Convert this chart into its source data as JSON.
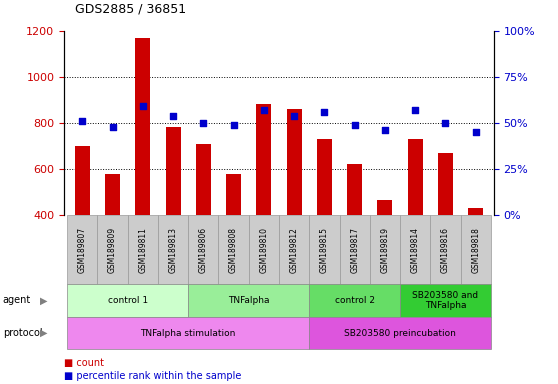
{
  "title": "GDS2885 / 36851",
  "samples": [
    "GSM189807",
    "GSM189809",
    "GSM189811",
    "GSM189813",
    "GSM189806",
    "GSM189808",
    "GSM189810",
    "GSM189812",
    "GSM189815",
    "GSM189817",
    "GSM189819",
    "GSM189814",
    "GSM189816",
    "GSM189818"
  ],
  "counts": [
    700,
    580,
    1170,
    780,
    710,
    580,
    880,
    860,
    730,
    620,
    465,
    730,
    670,
    430
  ],
  "percentiles": [
    51,
    48,
    59,
    54,
    50,
    49,
    57,
    54,
    56,
    49,
    46,
    57,
    50,
    45
  ],
  "ylim_left": [
    400,
    1200
  ],
  "ylim_right": [
    0,
    100
  ],
  "yticks_left": [
    400,
    600,
    800,
    1000,
    1200
  ],
  "yticks_right": [
    0,
    25,
    50,
    75,
    100
  ],
  "bar_color": "#cc0000",
  "dot_color": "#0000cc",
  "agent_groups": [
    {
      "label": "control 1",
      "start": 0,
      "end": 4,
      "color": "#ccffcc"
    },
    {
      "label": "TNFalpha",
      "start": 4,
      "end": 8,
      "color": "#99ee99"
    },
    {
      "label": "control 2",
      "start": 8,
      "end": 11,
      "color": "#66dd66"
    },
    {
      "label": "SB203580 and\nTNFalpha",
      "start": 11,
      "end": 14,
      "color": "#33cc33"
    }
  ],
  "protocol_groups": [
    {
      "label": "TNFalpha stimulation",
      "start": 0,
      "end": 8,
      "color": "#ee88ee"
    },
    {
      "label": "SB203580 preincubation",
      "start": 8,
      "end": 14,
      "color": "#dd55dd"
    }
  ],
  "legend_count_color": "#cc0000",
  "legend_pct_color": "#0000cc",
  "tick_label_color_left": "#cc0000",
  "tick_label_color_right": "#0000cc",
  "sample_cell_color": "#cccccc",
  "sample_cell_edge": "#999999"
}
